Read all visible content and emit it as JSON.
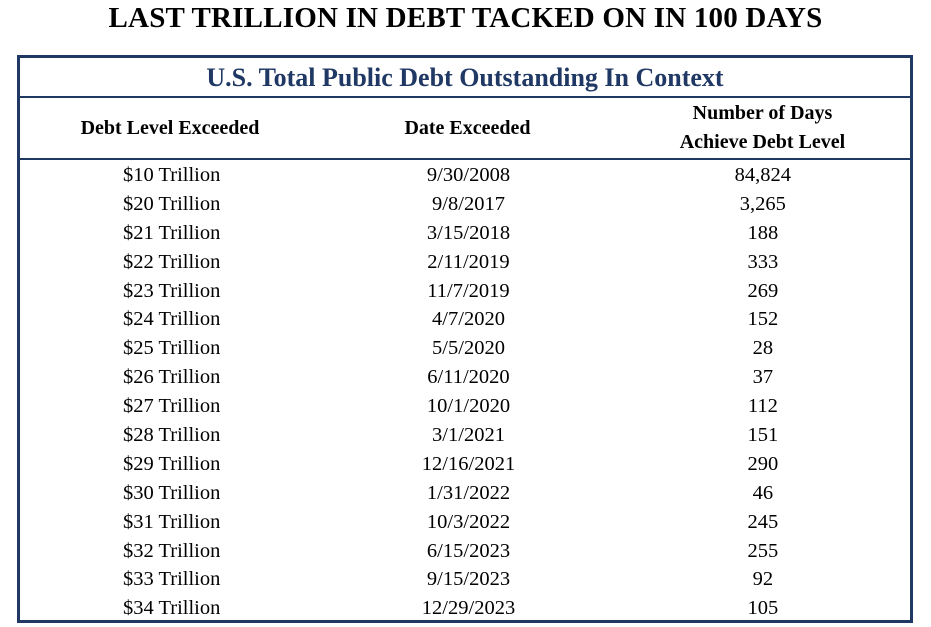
{
  "title": "LAST TRILLION IN DEBT TACKED ON IN 100 DAYS",
  "table": {
    "subtitle": "U.S. Total Public Debt Outstanding In Context",
    "headers": [
      "Debt Level Exceeded",
      "Date Exceeded",
      "Number of Days",
      "Achieve Debt Level"
    ],
    "rows": [
      [
        "$10 Trillion",
        "9/30/2008",
        "84,824"
      ],
      [
        "$20 Trillion",
        "9/8/2017",
        "3,265"
      ],
      [
        "$21 Trillion",
        "3/15/2018",
        "188"
      ],
      [
        "$22 Trillion",
        "2/11/2019",
        "333"
      ],
      [
        "$23 Trillion",
        "11/7/2019",
        "269"
      ],
      [
        "$24 Trillion",
        "4/7/2020",
        "152"
      ],
      [
        "$25 Trillion",
        "5/5/2020",
        "28"
      ],
      [
        "$26 Trillion",
        "6/11/2020",
        "37"
      ],
      [
        "$27 Trillion",
        "10/1/2020",
        "112"
      ],
      [
        "$28 Trillion",
        "3/1/2021",
        "151"
      ],
      [
        "$29 Trillion",
        "12/16/2021",
        "290"
      ],
      [
        "$30 Trillion",
        "1/31/2022",
        "46"
      ],
      [
        "$31 Trillion",
        "10/3/2022",
        "245"
      ],
      [
        "$32 Trillion",
        "6/15/2023",
        "255"
      ],
      [
        "$33 Trillion",
        "9/15/2023",
        "92"
      ],
      [
        "$34 Trillion",
        "12/29/2023",
        "105"
      ]
    ]
  },
  "colors": {
    "accent": "#1f3864"
  }
}
